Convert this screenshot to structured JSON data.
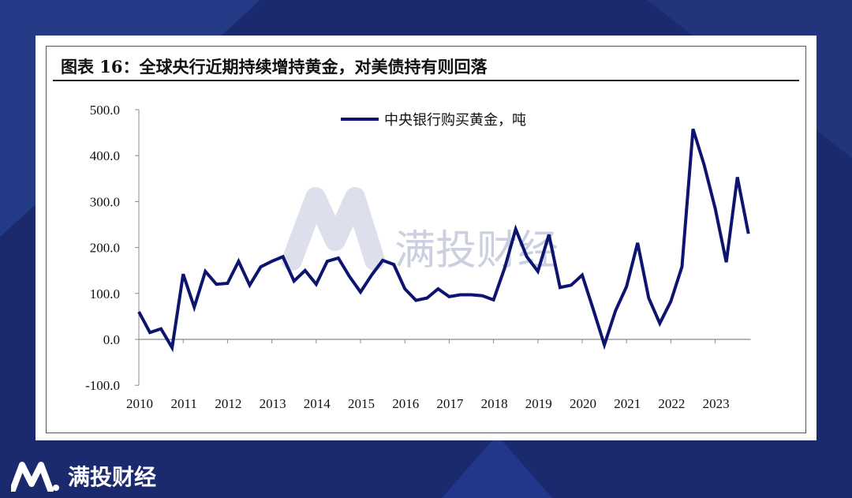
{
  "title": "图表 16：全球央行近期持续增持黄金，对美债持有则回落",
  "watermark": "满投财经",
  "brand": "满投财经",
  "colors": {
    "line": "#0d1470",
    "background": "#1b2a6e"
  },
  "chart_data": {
    "type": "line",
    "title": "",
    "xlabel": "",
    "ylabel": "",
    "ylim": [
      -100,
      500
    ],
    "yticks": [
      "-100.0",
      "0.0",
      "100.0",
      "200.0",
      "300.0",
      "400.0",
      "500.0"
    ],
    "xticks": [
      "2010",
      "2011",
      "2012",
      "2013",
      "2014",
      "2015",
      "2016",
      "2017",
      "2018",
      "2019",
      "2020",
      "2021",
      "2022",
      "2023"
    ],
    "legend_position": "top-center",
    "grid": false,
    "series": [
      {
        "name": "中央银行购买黄金，吨",
        "x": [
          "2010Q1",
          "2010Q2",
          "2010Q3",
          "2010Q4",
          "2011Q1",
          "2011Q2",
          "2011Q3",
          "2011Q4",
          "2012Q1",
          "2012Q2",
          "2012Q3",
          "2012Q4",
          "2013Q1",
          "2013Q2",
          "2013Q3",
          "2013Q4",
          "2014Q1",
          "2014Q2",
          "2014Q3",
          "2014Q4",
          "2015Q1",
          "2015Q2",
          "2015Q3",
          "2015Q4",
          "2016Q1",
          "2016Q2",
          "2016Q3",
          "2016Q4",
          "2017Q1",
          "2017Q2",
          "2017Q3",
          "2017Q4",
          "2018Q1",
          "2018Q2",
          "2018Q3",
          "2018Q4",
          "2019Q1",
          "2019Q2",
          "2019Q3",
          "2019Q4",
          "2020Q1",
          "2020Q2",
          "2020Q3",
          "2020Q4",
          "2021Q1",
          "2021Q2",
          "2021Q3",
          "2021Q4",
          "2022Q1",
          "2022Q2",
          "2022Q3",
          "2022Q4",
          "2023Q1",
          "2023Q2",
          "2023Q3",
          "2023Q4"
        ],
        "values": [
          60,
          15,
          23,
          -18,
          142,
          70,
          148,
          120,
          122,
          170,
          118,
          158,
          170,
          180,
          127,
          150,
          120,
          170,
          177,
          137,
          103,
          140,
          172,
          163,
          110,
          85,
          90,
          110,
          93,
          97,
          97,
          95,
          86,
          155,
          240,
          180,
          148,
          228,
          113,
          118,
          140,
          65,
          -12,
          62,
          115,
          210,
          90,
          35,
          83,
          158,
          458,
          380,
          285,
          168,
          353,
          230
        ]
      }
    ]
  }
}
